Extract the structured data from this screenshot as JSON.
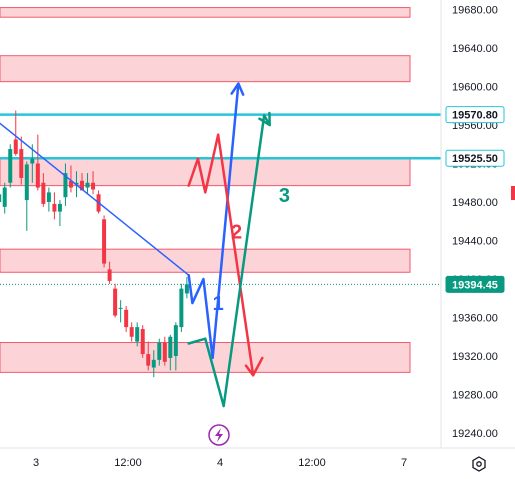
{
  "chart_data": {
    "type": "candlestick",
    "y_ticks": [
      "19680.00",
      "19640.00",
      "19600.00",
      "19560.00",
      "19520.00",
      "19480.00",
      "19440.00",
      "19400.00",
      "19360.00",
      "19320.00",
      "19280.00",
      "19240.00"
    ],
    "y_tick_values": [
      19680,
      19640,
      19600,
      19560,
      19520,
      19480,
      19440,
      19400,
      19360,
      19320,
      19280,
      19240
    ],
    "ylim": [
      19228,
      19688
    ],
    "x_ticks": [
      {
        "label": "3",
        "t": 0.5
      },
      {
        "label": "12:00",
        "t": 1.0
      },
      {
        "label": "4",
        "t": 1.5
      },
      {
        "label": "12:00",
        "t": 2.0
      },
      {
        "label": "7",
        "t": 2.5
      }
    ],
    "xlim": [
      0.25,
      2.6
    ],
    "candles": [
      {
        "t": 0.27,
        "o": 19495,
        "h": 19515,
        "l": 19470,
        "c": 19500
      },
      {
        "t": 0.3,
        "o": 19480,
        "h": 19500,
        "l": 19462,
        "c": 19488
      },
      {
        "t": 0.33,
        "o": 19475,
        "h": 19500,
        "l": 19468,
        "c": 19495
      },
      {
        "t": 0.36,
        "o": 19500,
        "h": 19540,
        "l": 19495,
        "c": 19535
      },
      {
        "t": 0.39,
        "o": 19545,
        "h": 19575,
        "l": 19528,
        "c": 19530
      },
      {
        "t": 0.42,
        "o": 19535,
        "h": 19548,
        "l": 19498,
        "c": 19505
      },
      {
        "t": 0.45,
        "o": 19482,
        "h": 19522,
        "l": 19450,
        "c": 19519
      },
      {
        "t": 0.48,
        "o": 19520,
        "h": 19540,
        "l": 19500,
        "c": 19525
      },
      {
        "t": 0.51,
        "o": 19520,
        "h": 19550,
        "l": 19492,
        "c": 19495
      },
      {
        "t": 0.54,
        "o": 19500,
        "h": 19510,
        "l": 19475,
        "c": 19478
      },
      {
        "t": 0.57,
        "o": 19480,
        "h": 19495,
        "l": 19470,
        "c": 19490
      },
      {
        "t": 0.6,
        "o": 19478,
        "h": 19490,
        "l": 19462,
        "c": 19470
      },
      {
        "t": 0.63,
        "o": 19470,
        "h": 19482,
        "l": 19455,
        "c": 19478
      },
      {
        "t": 0.66,
        "o": 19485,
        "h": 19520,
        "l": 19476,
        "c": 19510
      },
      {
        "t": 0.69,
        "o": 19502,
        "h": 19518,
        "l": 19490,
        "c": 19495
      },
      {
        "t": 0.72,
        "o": 19498,
        "h": 19512,
        "l": 19485,
        "c": 19500
      },
      {
        "t": 0.75,
        "o": 19502,
        "h": 19510,
        "l": 19492,
        "c": 19492
      },
      {
        "t": 0.78,
        "o": 19495,
        "h": 19510,
        "l": 19488,
        "c": 19500
      },
      {
        "t": 0.81,
        "o": 19500,
        "h": 19512,
        "l": 19488,
        "c": 19493
      },
      {
        "t": 0.84,
        "o": 19488,
        "h": 19492,
        "l": 19468,
        "c": 19470
      },
      {
        "t": 0.87,
        "o": 19462,
        "h": 19466,
        "l": 19412,
        "c": 19416
      },
      {
        "t": 0.9,
        "o": 19410,
        "h": 19418,
        "l": 19395,
        "c": 19398
      },
      {
        "t": 0.93,
        "o": 19390,
        "h": 19395,
        "l": 19360,
        "c": 19362
      },
      {
        "t": 0.96,
        "o": 19370,
        "h": 19378,
        "l": 19355,
        "c": 19370
      },
      {
        "t": 0.99,
        "o": 19368,
        "h": 19372,
        "l": 19345,
        "c": 19350
      },
      {
        "t": 1.02,
        "o": 19350,
        "h": 19355,
        "l": 19335,
        "c": 19340
      },
      {
        "t": 1.05,
        "o": 19335,
        "h": 19355,
        "l": 19330,
        "c": 19350
      },
      {
        "t": 1.08,
        "o": 19348,
        "h": 19352,
        "l": 19318,
        "c": 19322
      },
      {
        "t": 1.11,
        "o": 19322,
        "h": 19335,
        "l": 19305,
        "c": 19310
      },
      {
        "t": 1.14,
        "o": 19308,
        "h": 19326,
        "l": 19298,
        "c": 19316
      },
      {
        "t": 1.17,
        "o": 19316,
        "h": 19338,
        "l": 19310,
        "c": 19334
      },
      {
        "t": 1.2,
        "o": 19334,
        "h": 19340,
        "l": 19310,
        "c": 19314
      },
      {
        "t": 1.23,
        "o": 19318,
        "h": 19342,
        "l": 19305,
        "c": 19340
      },
      {
        "t": 1.26,
        "o": 19320,
        "h": 19355,
        "l": 19305,
        "c": 19352
      },
      {
        "t": 1.29,
        "o": 19350,
        "h": 19395,
        "l": 19345,
        "c": 19390
      },
      {
        "t": 1.32,
        "o": 19385,
        "h": 19402,
        "l": 19380,
        "c": 19394.45
      }
    ],
    "zones": [
      {
        "y1": 19682,
        "y2": 19672
      },
      {
        "y1": 19632,
        "y2": 19605
      },
      {
        "y1": 19525,
        "y2": 19497
      },
      {
        "y1": 19431,
        "y2": 19407
      },
      {
        "y1": 19334,
        "y2": 19303
      }
    ],
    "levels": [
      {
        "value": 19570.8,
        "label": "19570.80",
        "color": "#26c6da"
      },
      {
        "value": 19525.5,
        "label": "19525.50",
        "color": "#26c6da"
      }
    ],
    "last_price": {
      "value": 19394.45,
      "label": "19394.45",
      "color": "#089981"
    },
    "trendline": [
      {
        "t": 0.25,
        "v": 19570
      },
      {
        "t": 1.33,
        "v": 19404
      }
    ],
    "projections": [
      {
        "name": "1",
        "color": "#2962ff",
        "points": [
          [
            1.33,
            19404
          ],
          [
            1.35,
            19375
          ],
          [
            1.41,
            19400
          ],
          [
            1.46,
            19318
          ],
          [
            1.6,
            19603
          ]
        ],
        "label_at": [
          1.49,
          19368
        ]
      },
      {
        "name": "2",
        "color": "#f23645",
        "points": [
          [
            1.33,
            19497
          ],
          [
            1.38,
            19525
          ],
          [
            1.42,
            19490
          ],
          [
            1.49,
            19550
          ],
          [
            1.68,
            19300
          ],
          [
            1.73,
            19318
          ]
        ],
        "label_at": [
          1.59,
          19442
        ]
      },
      {
        "name": "3",
        "color": "#089981",
        "points": [
          [
            1.33,
            19333
          ],
          [
            1.42,
            19338
          ],
          [
            1.52,
            19268
          ],
          [
            1.74,
            19570
          ],
          [
            1.77,
            19560
          ]
        ],
        "label_at": [
          1.85,
          19480
        ]
      }
    ],
    "colors": {
      "up": "#089981",
      "down": "#f23645",
      "zone_fill": "#fcd4d8",
      "zone_stroke": "#f05a6a",
      "grid": "#ffffff"
    }
  }
}
